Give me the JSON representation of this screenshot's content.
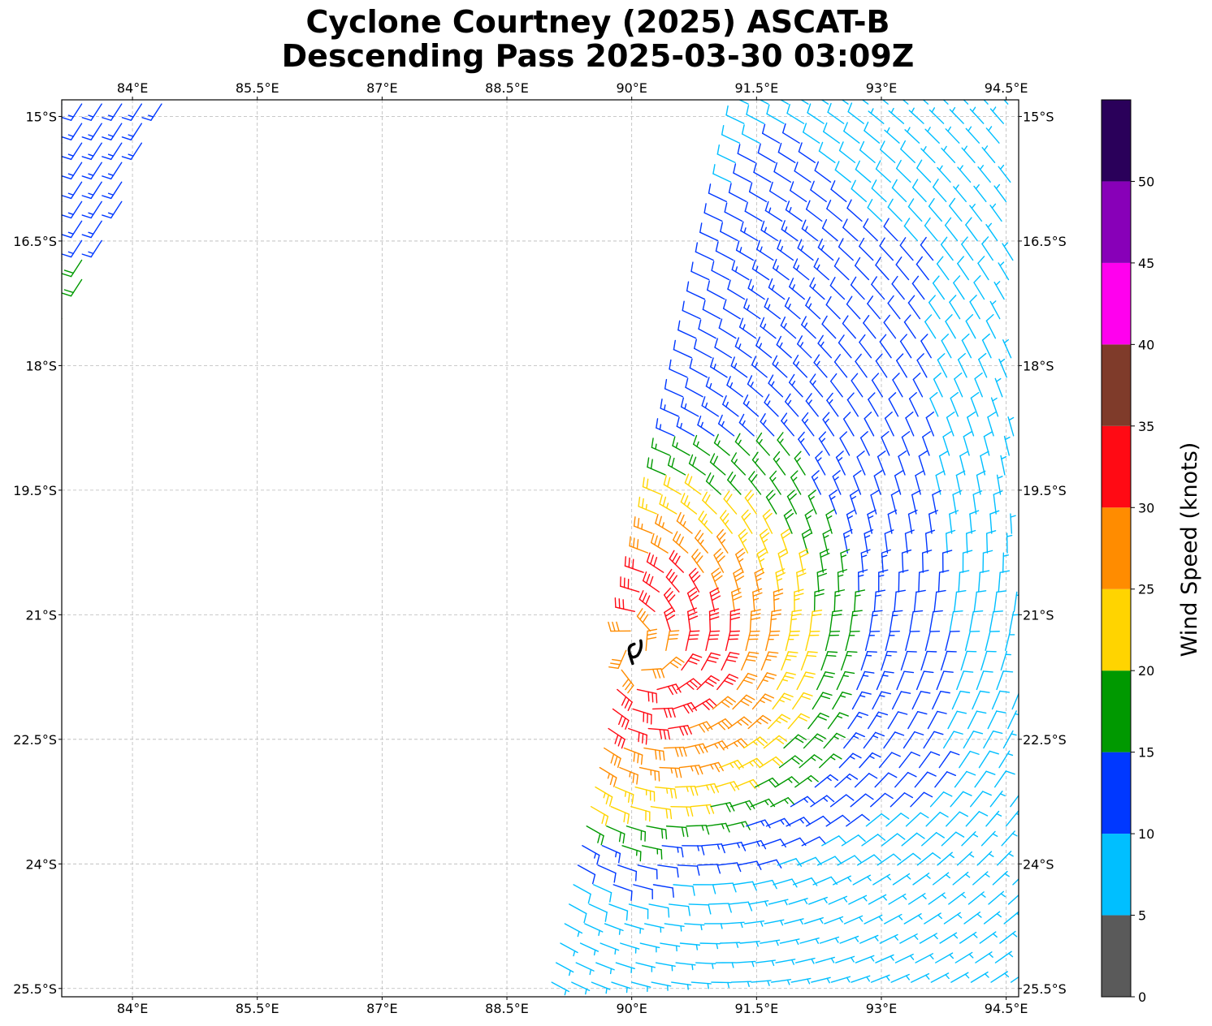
{
  "title_line1": "Cyclone Courtney (2025) ASCAT-B",
  "title_line2": "Descending Pass 2025-03-30 03:09Z",
  "chart_data": {
    "type": "wind-barb map",
    "map_extent": {
      "lon": [
        83.15,
        94.65
      ],
      "lat": [
        -25.6,
        -14.8
      ]
    },
    "x_ticks": [
      {
        "value": 84.0,
        "label": "84°E"
      },
      {
        "value": 85.5,
        "label": "85.5°E"
      },
      {
        "value": 87.0,
        "label": "87°E"
      },
      {
        "value": 88.5,
        "label": "88.5°E"
      },
      {
        "value": 90.0,
        "label": "90°E"
      },
      {
        "value": 91.5,
        "label": "91.5°E"
      },
      {
        "value": 93.0,
        "label": "93°E"
      },
      {
        "value": 94.5,
        "label": "94.5°E"
      }
    ],
    "y_ticks": [
      {
        "value": -15.0,
        "label": "15°S"
      },
      {
        "value": -16.5,
        "label": "16.5°S"
      },
      {
        "value": -18.0,
        "label": "18°S"
      },
      {
        "value": -19.5,
        "label": "19.5°S"
      },
      {
        "value": -21.0,
        "label": "21°S"
      },
      {
        "value": -22.5,
        "label": "22.5°S"
      },
      {
        "value": -24.0,
        "label": "24°S"
      },
      {
        "value": -25.5,
        "label": "25.5°S"
      }
    ],
    "grid": true,
    "colorbar": {
      "label": "Wind Speed (knots)",
      "range": [
        0,
        55
      ],
      "ticks": [
        0,
        5,
        10,
        15,
        20,
        25,
        30,
        35,
        40,
        45,
        50
      ],
      "bins": [
        {
          "from": 0,
          "to": 5,
          "color": "#5a5a5a"
        },
        {
          "from": 5,
          "to": 10,
          "color": "#00bfff"
        },
        {
          "from": 10,
          "to": 15,
          "color": "#0038ff"
        },
        {
          "from": 15,
          "to": 20,
          "color": "#009900"
        },
        {
          "from": 20,
          "to": 25,
          "color": "#ffd400"
        },
        {
          "from": 25,
          "to": 30,
          "color": "#ff8c00"
        },
        {
          "from": 30,
          "to": 35,
          "color": "#ff0a14"
        },
        {
          "from": 35,
          "to": 40,
          "color": "#7f3b2a"
        },
        {
          "from": 40,
          "to": 45,
          "color": "#ff00ee"
        },
        {
          "from": 45,
          "to": 50,
          "color": "#8800b8"
        },
        {
          "from": 50,
          "to": 55,
          "color": "#2a005a"
        }
      ]
    },
    "center_marker": {
      "lon": 90.05,
      "lat": -21.45,
      "symbol": "tropical-cyclone"
    },
    "swaths": [
      {
        "name": "west-swath",
        "lon_west": [
          83.15,
          83.15
        ],
        "lon_east": [
          84.4,
          82.6
        ],
        "lat_north": -14.85,
        "lat_south": -18.9
      },
      {
        "name": "east-swath",
        "lon_west": [
          91.4,
          89.0
        ],
        "lon_east": [
          94.6,
          94.6
        ],
        "lat_north": -14.85,
        "lat_south": -25.6
      }
    ]
  }
}
